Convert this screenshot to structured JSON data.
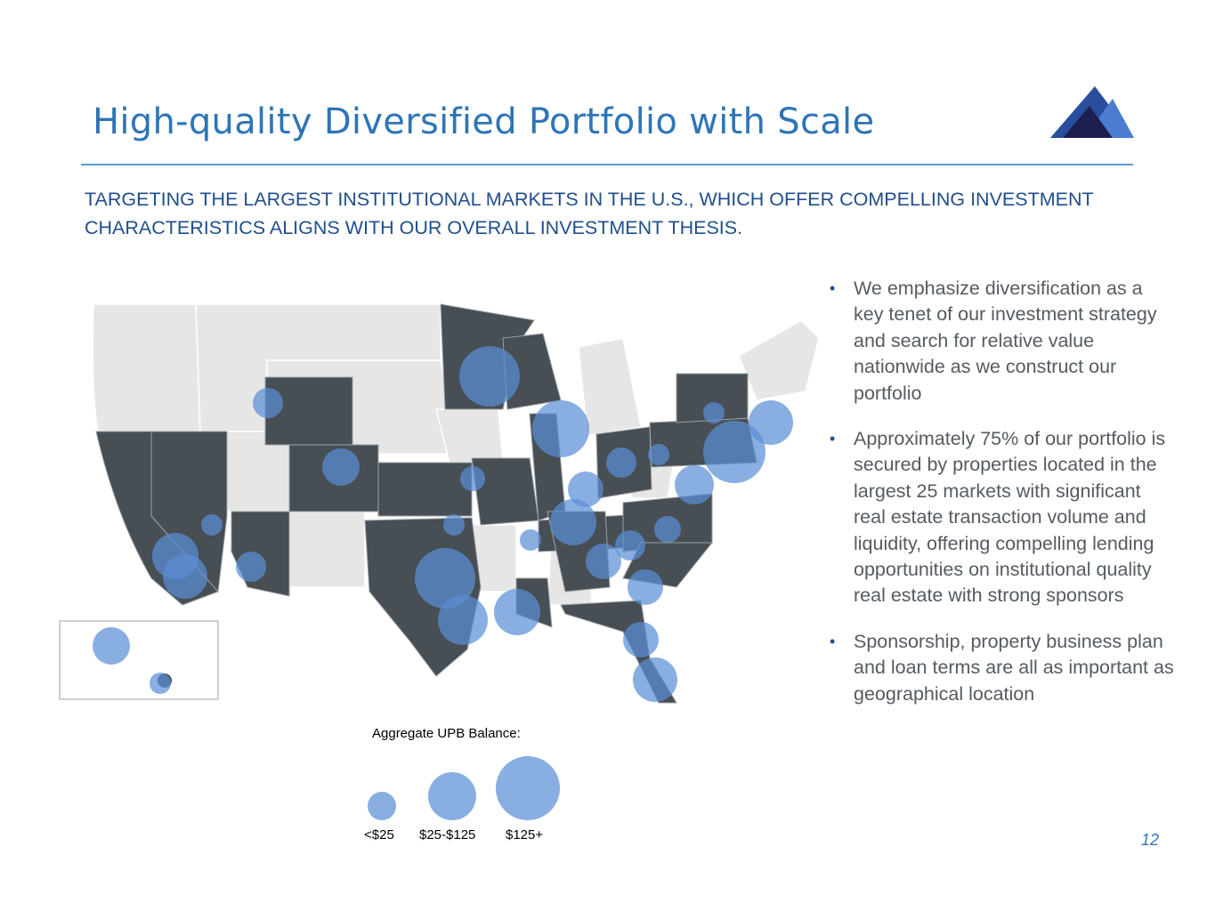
{
  "header": {
    "title": "High-quality Diversified Portfolio with Scale",
    "logo_icon": "mountain-logo-icon"
  },
  "subtitle": "TARGETING THE LARGEST INSTITUTIONAL MARKETS IN THE U.S., WHICH OFFER COMPELLING INVESTMENT CHARACTERISTICS ALIGNS WITH OUR OVERALL INVESTMENT THESIS.",
  "bullets": [
    "We emphasize diversification as a key tenet of our investment strategy and search for relative value nationwide as we construct our portfolio",
    "Approximately 75% of our portfolio is secured by properties located in the largest 25 markets with significant real estate transaction volume and liquidity, offering compelling lending opportunities on institutional quality real estate with strong sponsors",
    "Sponsorship, property business plan and loan terms are all as important as geographical location"
  ],
  "legend": {
    "title": "Aggregate UPB Balance:",
    "items": [
      {
        "label": "<$25",
        "size": "small"
      },
      {
        "label": "$25-$125",
        "size": "medium"
      },
      {
        "label": "$125+",
        "size": "large"
      }
    ]
  },
  "page_number": "12",
  "colors": {
    "title_blue": "#2e75b6",
    "subtitle_navy": "#1f4e8c",
    "state_active": "#474e54",
    "state_inactive": "#e6e6e6",
    "bubble": "#5b8fd6"
  }
}
